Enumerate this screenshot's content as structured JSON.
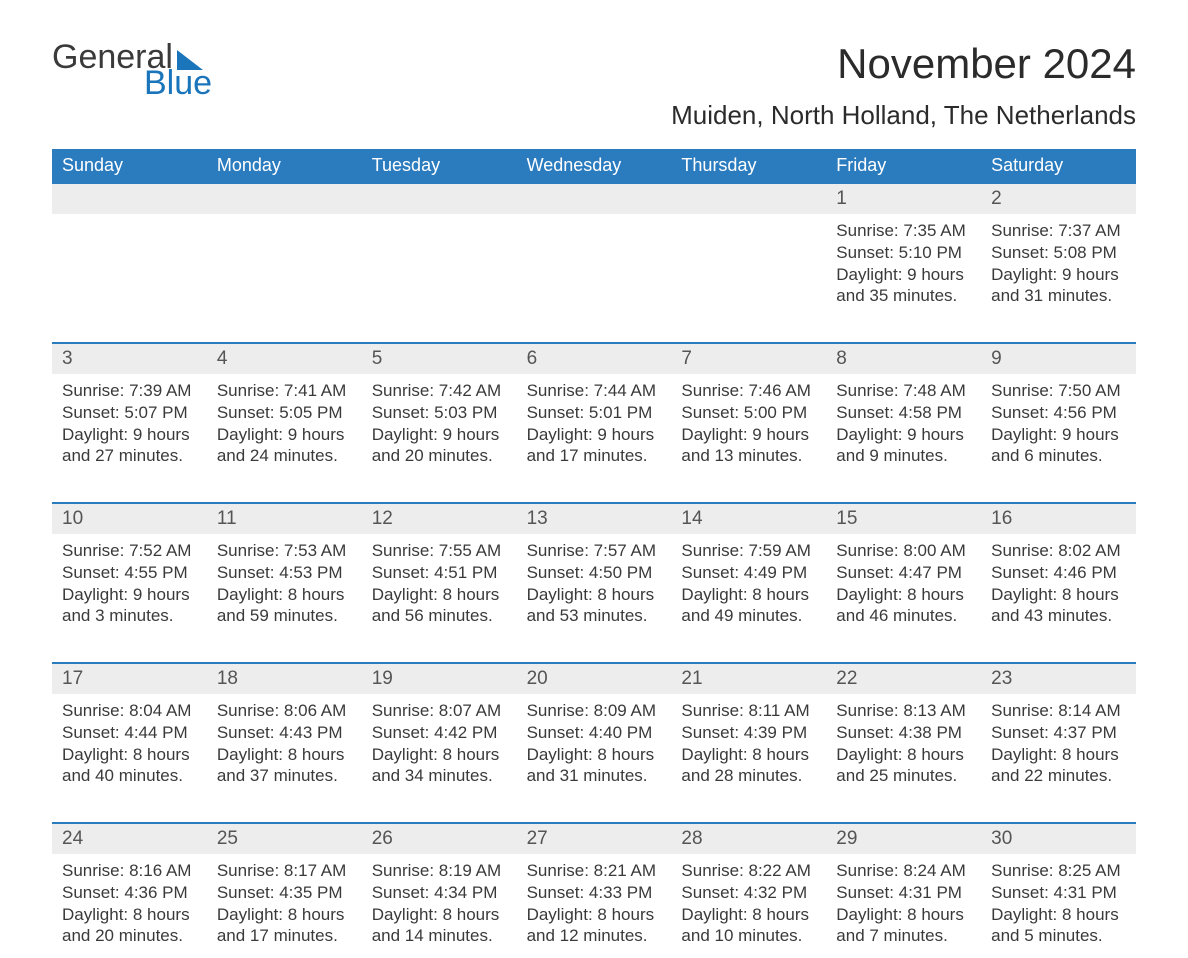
{
  "logo": {
    "word1": "General",
    "word2": "Blue"
  },
  "title": "November 2024",
  "location": "Muiden, North Holland, The Netherlands",
  "colors": {
    "brand_blue": "#1b75bb",
    "header_blue": "#2b7bbf",
    "daynum_bg": "#ededed",
    "text": "#3a3a3a",
    "white": "#ffffff"
  },
  "weekdays": [
    "Sunday",
    "Monday",
    "Tuesday",
    "Wednesday",
    "Thursday",
    "Friday",
    "Saturday"
  ],
  "weeks": [
    [
      {
        "n": "",
        "sunrise": "",
        "sunset": "",
        "day1": "",
        "day2": ""
      },
      {
        "n": "",
        "sunrise": "",
        "sunset": "",
        "day1": "",
        "day2": ""
      },
      {
        "n": "",
        "sunrise": "",
        "sunset": "",
        "day1": "",
        "day2": ""
      },
      {
        "n": "",
        "sunrise": "",
        "sunset": "",
        "day1": "",
        "day2": ""
      },
      {
        "n": "",
        "sunrise": "",
        "sunset": "",
        "day1": "",
        "day2": ""
      },
      {
        "n": "1",
        "sunrise": "Sunrise: 7:35 AM",
        "sunset": "Sunset: 5:10 PM",
        "day1": "Daylight: 9 hours",
        "day2": "and 35 minutes."
      },
      {
        "n": "2",
        "sunrise": "Sunrise: 7:37 AM",
        "sunset": "Sunset: 5:08 PM",
        "day1": "Daylight: 9 hours",
        "day2": "and 31 minutes."
      }
    ],
    [
      {
        "n": "3",
        "sunrise": "Sunrise: 7:39 AM",
        "sunset": "Sunset: 5:07 PM",
        "day1": "Daylight: 9 hours",
        "day2": "and 27 minutes."
      },
      {
        "n": "4",
        "sunrise": "Sunrise: 7:41 AM",
        "sunset": "Sunset: 5:05 PM",
        "day1": "Daylight: 9 hours",
        "day2": "and 24 minutes."
      },
      {
        "n": "5",
        "sunrise": "Sunrise: 7:42 AM",
        "sunset": "Sunset: 5:03 PM",
        "day1": "Daylight: 9 hours",
        "day2": "and 20 minutes."
      },
      {
        "n": "6",
        "sunrise": "Sunrise: 7:44 AM",
        "sunset": "Sunset: 5:01 PM",
        "day1": "Daylight: 9 hours",
        "day2": "and 17 minutes."
      },
      {
        "n": "7",
        "sunrise": "Sunrise: 7:46 AM",
        "sunset": "Sunset: 5:00 PM",
        "day1": "Daylight: 9 hours",
        "day2": "and 13 minutes."
      },
      {
        "n": "8",
        "sunrise": "Sunrise: 7:48 AM",
        "sunset": "Sunset: 4:58 PM",
        "day1": "Daylight: 9 hours",
        "day2": "and 9 minutes."
      },
      {
        "n": "9",
        "sunrise": "Sunrise: 7:50 AM",
        "sunset": "Sunset: 4:56 PM",
        "day1": "Daylight: 9 hours",
        "day2": "and 6 minutes."
      }
    ],
    [
      {
        "n": "10",
        "sunrise": "Sunrise: 7:52 AM",
        "sunset": "Sunset: 4:55 PM",
        "day1": "Daylight: 9 hours",
        "day2": "and 3 minutes."
      },
      {
        "n": "11",
        "sunrise": "Sunrise: 7:53 AM",
        "sunset": "Sunset: 4:53 PM",
        "day1": "Daylight: 8 hours",
        "day2": "and 59 minutes."
      },
      {
        "n": "12",
        "sunrise": "Sunrise: 7:55 AM",
        "sunset": "Sunset: 4:51 PM",
        "day1": "Daylight: 8 hours",
        "day2": "and 56 minutes."
      },
      {
        "n": "13",
        "sunrise": "Sunrise: 7:57 AM",
        "sunset": "Sunset: 4:50 PM",
        "day1": "Daylight: 8 hours",
        "day2": "and 53 minutes."
      },
      {
        "n": "14",
        "sunrise": "Sunrise: 7:59 AM",
        "sunset": "Sunset: 4:49 PM",
        "day1": "Daylight: 8 hours",
        "day2": "and 49 minutes."
      },
      {
        "n": "15",
        "sunrise": "Sunrise: 8:00 AM",
        "sunset": "Sunset: 4:47 PM",
        "day1": "Daylight: 8 hours",
        "day2": "and 46 minutes."
      },
      {
        "n": "16",
        "sunrise": "Sunrise: 8:02 AM",
        "sunset": "Sunset: 4:46 PM",
        "day1": "Daylight: 8 hours",
        "day2": "and 43 minutes."
      }
    ],
    [
      {
        "n": "17",
        "sunrise": "Sunrise: 8:04 AM",
        "sunset": "Sunset: 4:44 PM",
        "day1": "Daylight: 8 hours",
        "day2": "and 40 minutes."
      },
      {
        "n": "18",
        "sunrise": "Sunrise: 8:06 AM",
        "sunset": "Sunset: 4:43 PM",
        "day1": "Daylight: 8 hours",
        "day2": "and 37 minutes."
      },
      {
        "n": "19",
        "sunrise": "Sunrise: 8:07 AM",
        "sunset": "Sunset: 4:42 PM",
        "day1": "Daylight: 8 hours",
        "day2": "and 34 minutes."
      },
      {
        "n": "20",
        "sunrise": "Sunrise: 8:09 AM",
        "sunset": "Sunset: 4:40 PM",
        "day1": "Daylight: 8 hours",
        "day2": "and 31 minutes."
      },
      {
        "n": "21",
        "sunrise": "Sunrise: 8:11 AM",
        "sunset": "Sunset: 4:39 PM",
        "day1": "Daylight: 8 hours",
        "day2": "and 28 minutes."
      },
      {
        "n": "22",
        "sunrise": "Sunrise: 8:13 AM",
        "sunset": "Sunset: 4:38 PM",
        "day1": "Daylight: 8 hours",
        "day2": "and 25 minutes."
      },
      {
        "n": "23",
        "sunrise": "Sunrise: 8:14 AM",
        "sunset": "Sunset: 4:37 PM",
        "day1": "Daylight: 8 hours",
        "day2": "and 22 minutes."
      }
    ],
    [
      {
        "n": "24",
        "sunrise": "Sunrise: 8:16 AM",
        "sunset": "Sunset: 4:36 PM",
        "day1": "Daylight: 8 hours",
        "day2": "and 20 minutes."
      },
      {
        "n": "25",
        "sunrise": "Sunrise: 8:17 AM",
        "sunset": "Sunset: 4:35 PM",
        "day1": "Daylight: 8 hours",
        "day2": "and 17 minutes."
      },
      {
        "n": "26",
        "sunrise": "Sunrise: 8:19 AM",
        "sunset": "Sunset: 4:34 PM",
        "day1": "Daylight: 8 hours",
        "day2": "and 14 minutes."
      },
      {
        "n": "27",
        "sunrise": "Sunrise: 8:21 AM",
        "sunset": "Sunset: 4:33 PM",
        "day1": "Daylight: 8 hours",
        "day2": "and 12 minutes."
      },
      {
        "n": "28",
        "sunrise": "Sunrise: 8:22 AM",
        "sunset": "Sunset: 4:32 PM",
        "day1": "Daylight: 8 hours",
        "day2": "and 10 minutes."
      },
      {
        "n": "29",
        "sunrise": "Sunrise: 8:24 AM",
        "sunset": "Sunset: 4:31 PM",
        "day1": "Daylight: 8 hours",
        "day2": "and 7 minutes."
      },
      {
        "n": "30",
        "sunrise": "Sunrise: 8:25 AM",
        "sunset": "Sunset: 4:31 PM",
        "day1": "Daylight: 8 hours",
        "day2": "and 5 minutes."
      }
    ]
  ]
}
